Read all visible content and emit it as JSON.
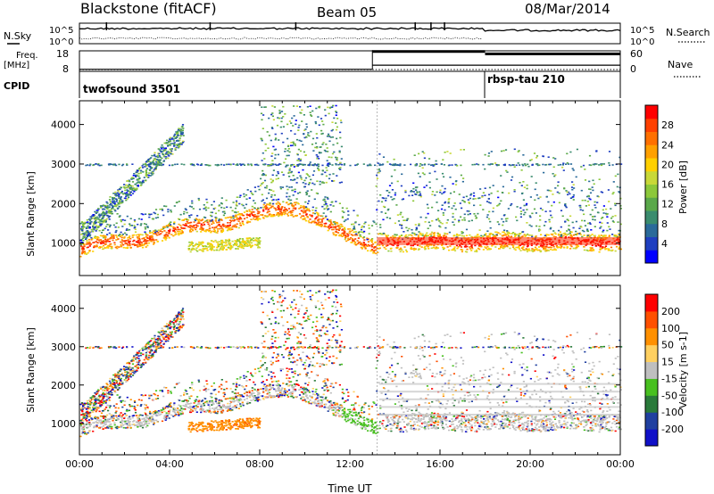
{
  "header": {
    "station": "Blackstone (fitACF)",
    "beam": "Beam 05",
    "date": "08/Mar/2014"
  },
  "strips": {
    "nsky_label": "N.Sky",
    "nsky_ticks": [
      "10^5",
      "10^0"
    ],
    "nsearch_label": "N.Search",
    "nsearch_ticks": [
      "10^5",
      "10^0"
    ],
    "freq_label": "Freq.",
    "freq_unit": "[MHz]",
    "freq_ticks": [
      "18",
      "8"
    ],
    "nave_label": "Nave",
    "nave_ticks": [
      "60",
      "0"
    ],
    "cpid_label": "CPID",
    "cpid_segments": [
      {
        "name": "twofsound 3501",
        "start_hour": 0
      },
      {
        "name": "rbsp-tau 210",
        "start_hour": 18
      }
    ],
    "freq_series": [
      {
        "start_hour": 0,
        "end_hour": 13,
        "value_mhz": 9
      },
      {
        "start_hour": 13,
        "end_hour": 18,
        "value_mhz": 11
      },
      {
        "start_hour": 18,
        "end_hour": 24,
        "value_mhz": 11
      }
    ],
    "nave_series": [
      {
        "start_hour": 0,
        "end_hour": 13,
        "value": 0
      },
      {
        "start_hour": 13,
        "end_hour": 18,
        "value": 62
      },
      {
        "start_hour": 18,
        "end_hour": 24,
        "value": 55
      }
    ]
  },
  "chart_data": [
    {
      "type": "heatmap",
      "title": "Power",
      "xlabel": "Time UT",
      "ylabel": "Slant Range [km]",
      "xlim_hours": [
        0,
        24
      ],
      "ylim_km": [
        180,
        4600
      ],
      "x_tick_labels": [
        "00:00",
        "04:00",
        "08:00",
        "12:00",
        "16:00",
        "20:00",
        "00:00"
      ],
      "y_ticks": [
        1000,
        2000,
        3000,
        4000
      ],
      "colorbar": {
        "label": "Power [dB]",
        "ticks": [
          4,
          8,
          12,
          16,
          20,
          24,
          28
        ],
        "range": [
          0,
          30
        ],
        "colors": [
          "#0000ff",
          "#1f3fc0",
          "#2a6a9a",
          "#3a8c6e",
          "#5aa84a",
          "#8cc83a",
          "#c8d838",
          "#ffd000",
          "#ffa000",
          "#ff7000",
          "#ff4000",
          "#ff0000"
        ]
      },
      "features": [
        {
          "name": "main E/F band",
          "range_km_start": 850,
          "range_km_peak": 1900,
          "peak_hour": 9.5,
          "end_hour": 13.2,
          "power_db": 26
        },
        {
          "name": "late band",
          "start_hour": 13.2,
          "end_hour": 24,
          "range_km": 1050,
          "power_db": 28
        }
      ]
    },
    {
      "type": "heatmap",
      "title": "Velocity",
      "xlabel": "Time UT",
      "ylabel": "Slant Range [km]",
      "xlim_hours": [
        0,
        24
      ],
      "ylim_km": [
        180,
        4600
      ],
      "x_tick_labels": [
        "00:00",
        "04:00",
        "08:00",
        "12:00",
        "16:00",
        "20:00",
        "00:00"
      ],
      "y_ticks": [
        1000,
        2000,
        3000,
        4000
      ],
      "colorbar": {
        "label": "Velocity [m s-1]",
        "ticks": [
          200,
          100,
          50,
          15,
          -15,
          -50,
          -100,
          -200
        ],
        "colors": [
          "#1010c8",
          "#2040a0",
          "#2a7a3a",
          "#48c020",
          "#bfbfbf",
          "#ffd060",
          "#ff9000",
          "#ff5000",
          "#ff0000"
        ]
      }
    }
  ]
}
